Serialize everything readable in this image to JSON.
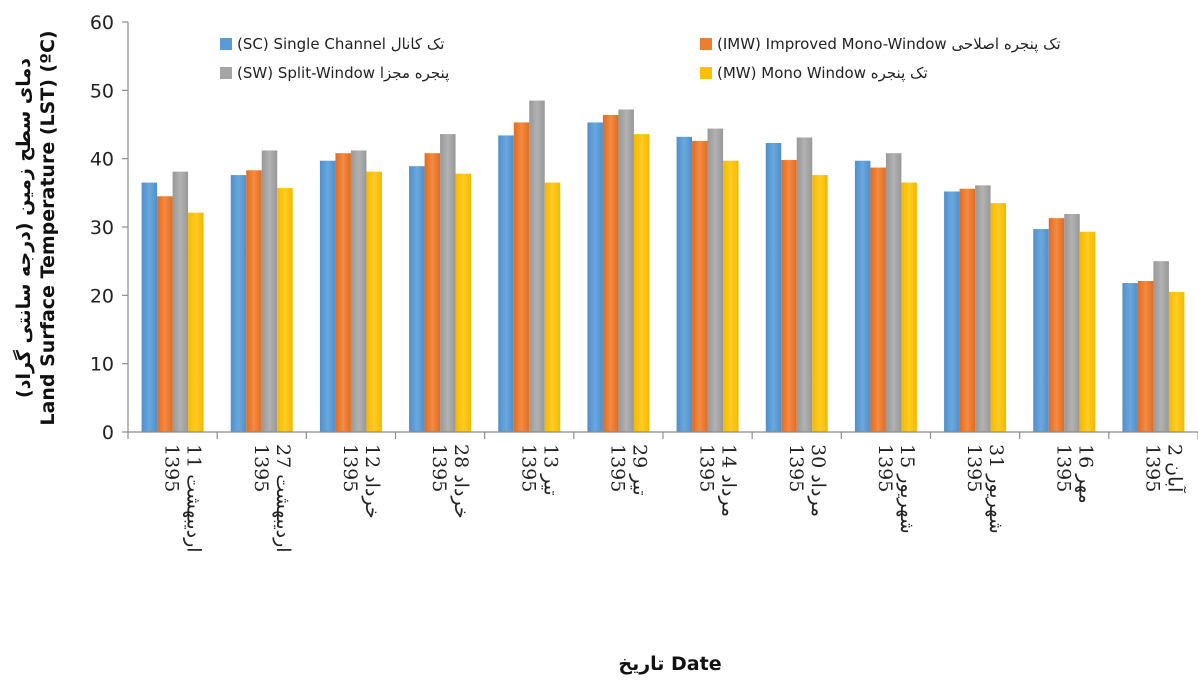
{
  "chart_data": {
    "type": "bar",
    "title": "",
    "xlabel": "تاریخ  Date",
    "ylabel": "دمای سطح زمین (درجه سانتی گراد)",
    "ylabel_en": "Land Surface Temperature (LST) (ºC)",
    "ylim": [
      0,
      60
    ],
    "yticks": [
      0,
      10,
      20,
      30,
      40,
      50,
      60
    ],
    "grid": false,
    "legend_position": "top",
    "categories": [
      [
        "11 اردیبهشت",
        "1395"
      ],
      [
        "27 اردیبهشت",
        "1395"
      ],
      [
        "12 خرداد",
        "1395"
      ],
      [
        "28 خرداد",
        "1395"
      ],
      [
        "13 تیر",
        "1395"
      ],
      [
        "29 تیر",
        "1395"
      ],
      [
        "14 مرداد",
        "1395"
      ],
      [
        "30 مرداد",
        "1395"
      ],
      [
        "15 شهریور",
        "1395"
      ],
      [
        "31 شهریور",
        "1395"
      ],
      [
        "16 مهر",
        "1395"
      ],
      [
        "2 آبان",
        "1395"
      ]
    ],
    "series": [
      {
        "name": "(SC) Single Channel تک کانال",
        "color": "#5b9bd5",
        "values": [
          36.5,
          37.6,
          39.7,
          38.9,
          43.4,
          45.3,
          43.2,
          42.3,
          39.7,
          35.2,
          29.7,
          21.8
        ]
      },
      {
        "name": "(IMW) Improved Mono-Window تک پنجره اصلاحی",
        "color": "#ed7d31",
        "values": [
          34.5,
          38.3,
          40.8,
          40.8,
          45.3,
          46.4,
          42.6,
          39.8,
          38.7,
          35.6,
          31.3,
          22.1
        ]
      },
      {
        "name": "(SW) Split-Window پنجره مجزا",
        "color": "#a5a5a5",
        "values": [
          38.1,
          41.2,
          41.2,
          43.6,
          48.5,
          47.2,
          44.4,
          43.1,
          40.8,
          36.1,
          31.9,
          25.0
        ]
      },
      {
        "name": "(MW) Mono Window تک پنجره",
        "color": "#ffc000",
        "values": [
          32.1,
          35.7,
          38.1,
          37.8,
          36.5,
          43.6,
          39.7,
          37.6,
          36.5,
          33.5,
          29.3,
          20.5
        ]
      }
    ]
  }
}
